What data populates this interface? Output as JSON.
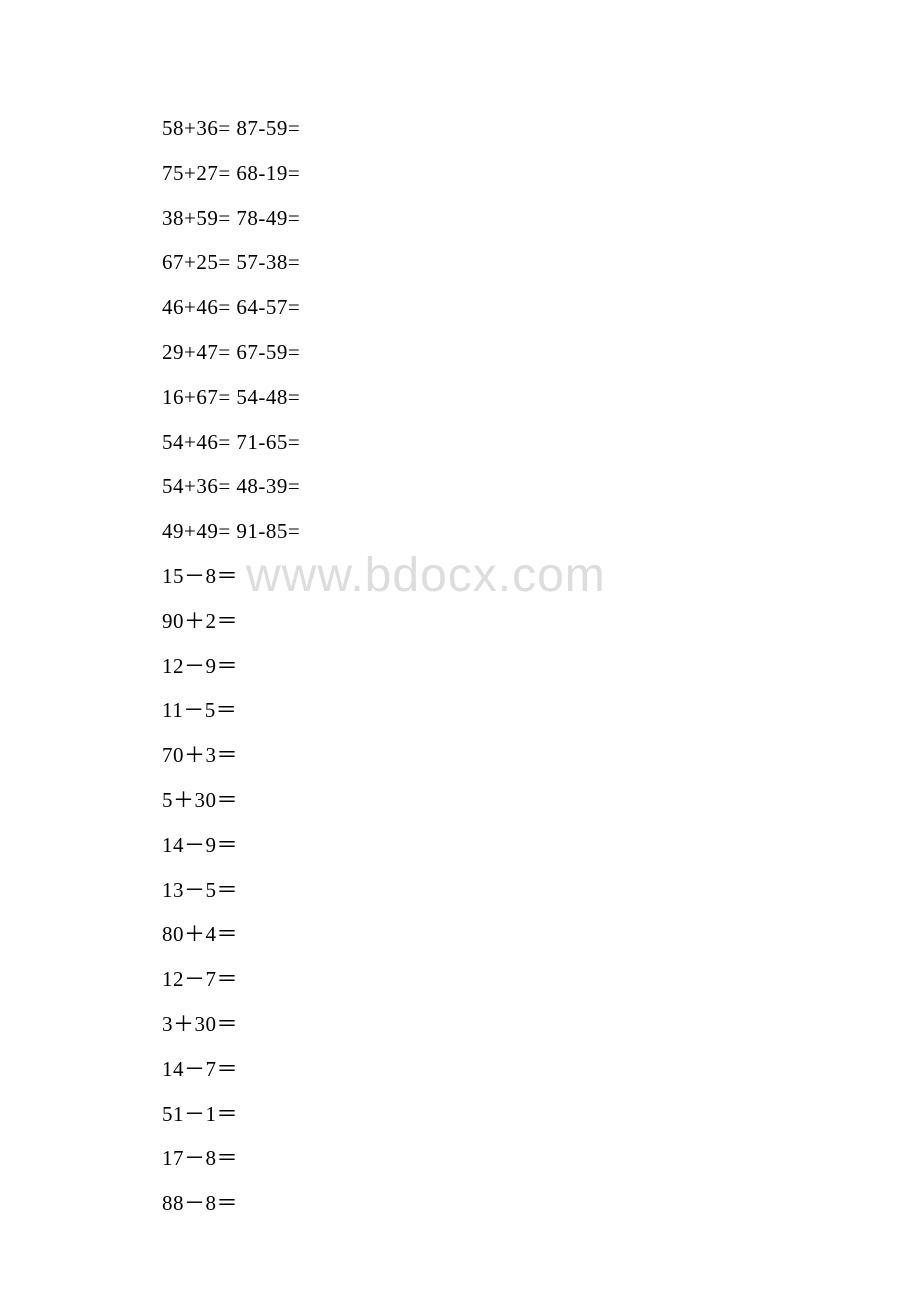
{
  "document": {
    "background_color": "#ffffff",
    "text_color": "#000000",
    "font_size": 21,
    "line_height": 44.8,
    "watermark_color": "#dddddd",
    "watermark_fontsize": 48,
    "watermark_text": "www.bdocx.com",
    "lines": [
      "58+36= 87-59=",
      "75+27= 68-19=",
      "38+59= 78-49=",
      "67+25= 57-38=",
      "46+46= 64-57=",
      "29+47= 67-59=",
      "16+67= 54-48=",
      "54+46= 71-65=",
      "54+36= 48-39=",
      "49+49= 91-85=",
      "15－8＝",
      "90＋2＝",
      "12－9＝",
      "11－5＝",
      "70＋3＝",
      "5＋30＝",
      "14－9＝",
      "13－5＝",
      "80＋4＝",
      "12－7＝",
      "3＋30＝",
      "14－7＝",
      "51－1＝",
      "17－8＝",
      "88－8＝"
    ]
  }
}
